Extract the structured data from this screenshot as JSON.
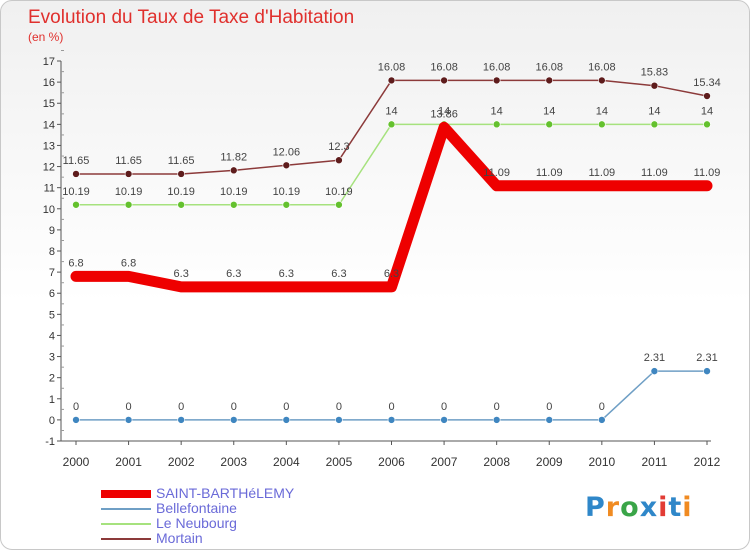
{
  "header": {
    "title": "Evolution du Taux de Taxe d'Habitation",
    "subtitle": "(en %)"
  },
  "logo": {
    "text": "Proxiti",
    "colors": [
      "#2f87c9",
      "#f08b22",
      "#3aa548",
      "#2f87c9",
      "#e23c35"
    ]
  },
  "chart_data": {
    "type": "line",
    "title": "Evolution du Taux de Taxe d'Habitation",
    "ylabel": "(en %)",
    "xlabel": "",
    "x": [
      "2000",
      "2001",
      "2002",
      "2003",
      "2004",
      "2005",
      "2006",
      "2007",
      "2008",
      "2009",
      "2010",
      "2011",
      "2012"
    ],
    "ylim": [
      -1,
      17
    ],
    "yticks": [
      -1,
      0,
      1,
      2,
      3,
      4,
      5,
      6,
      7,
      8,
      9,
      10,
      11,
      12,
      13,
      14,
      15,
      16,
      17
    ],
    "grid": false,
    "legend_position": "bottom-left",
    "series": [
      {
        "name": "SAINT-BARTHéLEMY",
        "color": "#ee0000",
        "values": [
          6.8,
          6.8,
          6.3,
          6.3,
          6.3,
          6.3,
          6.3,
          13.86,
          11.09,
          11.09,
          11.09,
          11.09,
          11.09
        ],
        "labels": [
          "6.8",
          "6.8",
          "6.3",
          "6.3",
          "6.3",
          "6.3",
          "6.3",
          "13.86",
          "11.09",
          "11.09",
          "11.09",
          "11.09",
          "11.09"
        ]
      },
      {
        "name": "Bellefontaine",
        "color": "#6f9fc5",
        "marker": "#3f86c0",
        "values": [
          0,
          0,
          0,
          0,
          0,
          0,
          0,
          0,
          0,
          0,
          0,
          2.31,
          2.31
        ],
        "labels": [
          "0",
          "0",
          "0",
          "0",
          "0",
          "0",
          "0",
          "0",
          "0",
          "0",
          "0",
          "2.31",
          "2.31"
        ]
      },
      {
        "name": "Le Neubourg",
        "color": "#a6e27e",
        "marker": "#64c12e",
        "values": [
          10.19,
          10.19,
          10.19,
          10.19,
          10.19,
          10.19,
          14,
          14,
          14,
          14,
          14,
          14,
          14
        ],
        "labels": [
          "10.19",
          "10.19",
          "10.19",
          "10.19",
          "10.19",
          "10.19",
          "14",
          "14",
          "14",
          "14",
          "14",
          "14",
          "14"
        ]
      },
      {
        "name": "Mortain",
        "color": "#8c3a3a",
        "marker": "#5e1c1c",
        "values": [
          11.65,
          11.65,
          11.65,
          11.82,
          12.06,
          12.3,
          16.08,
          16.08,
          16.08,
          16.08,
          16.08,
          15.83,
          15.34
        ],
        "labels": [
          "11.65",
          "11.65",
          "11.65",
          "11.82",
          "12.06",
          "12.3",
          "16.08",
          "16.08",
          "16.08",
          "16.08",
          "16.08",
          "15.83",
          "15.34"
        ]
      }
    ]
  }
}
